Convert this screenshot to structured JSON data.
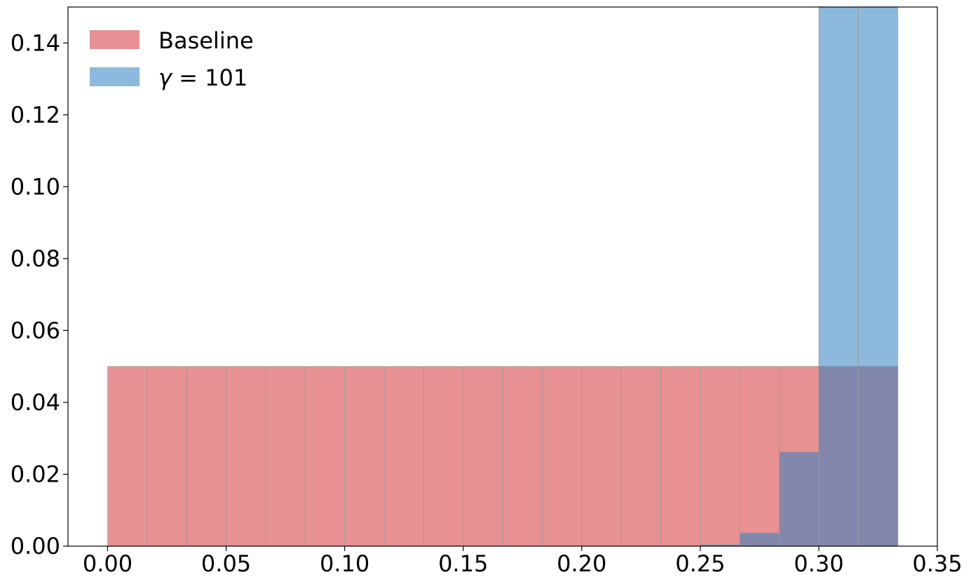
{
  "chart_data": {
    "type": "bar",
    "title": "",
    "xlabel": "",
    "ylabel": "",
    "xlim": [
      -0.0167,
      0.35
    ],
    "ylim": [
      0,
      0.15
    ],
    "bin_width": 0.016667,
    "x_ticks": [
      "0.00",
      "0.05",
      "0.10",
      "0.15",
      "0.20",
      "0.25",
      "0.30",
      "0.35"
    ],
    "x_tick_values": [
      0.0,
      0.05,
      0.1,
      0.15,
      0.2,
      0.25,
      0.3,
      0.35
    ],
    "y_ticks": [
      "0.00",
      "0.02",
      "0.04",
      "0.06",
      "0.08",
      "0.10",
      "0.12",
      "0.14"
    ],
    "y_tick_values": [
      0.0,
      0.02,
      0.04,
      0.06,
      0.08,
      0.1,
      0.12,
      0.14
    ],
    "legend_position": "upper-left",
    "grid": false,
    "series": [
      {
        "name": "Baseline",
        "color": "#e06c6e",
        "bin_starts": [
          0.0,
          0.016667,
          0.033333,
          0.05,
          0.066667,
          0.083333,
          0.1,
          0.116667,
          0.133333,
          0.15,
          0.166667,
          0.183333,
          0.2,
          0.216667,
          0.233333,
          0.25,
          0.266667,
          0.283333,
          0.3,
          0.316667
        ],
        "values": [
          0.05,
          0.05,
          0.05,
          0.05,
          0.05,
          0.05,
          0.05,
          0.05,
          0.05,
          0.05,
          0.05,
          0.05,
          0.05,
          0.05,
          0.05,
          0.05,
          0.05,
          0.05,
          0.05,
          0.05
        ]
      },
      {
        "name": "γ = 101",
        "color": "#2f7fc0",
        "bin_starts": [
          0.25,
          0.266667,
          0.283333,
          0.3,
          0.316667
        ],
        "values": [
          0.0004,
          0.0037,
          0.0262,
          0.15,
          0.15
        ]
      }
    ]
  },
  "legend": {
    "baseline_label": "Baseline",
    "gamma_symbol": "γ",
    "gamma_rest": " = 101"
  }
}
